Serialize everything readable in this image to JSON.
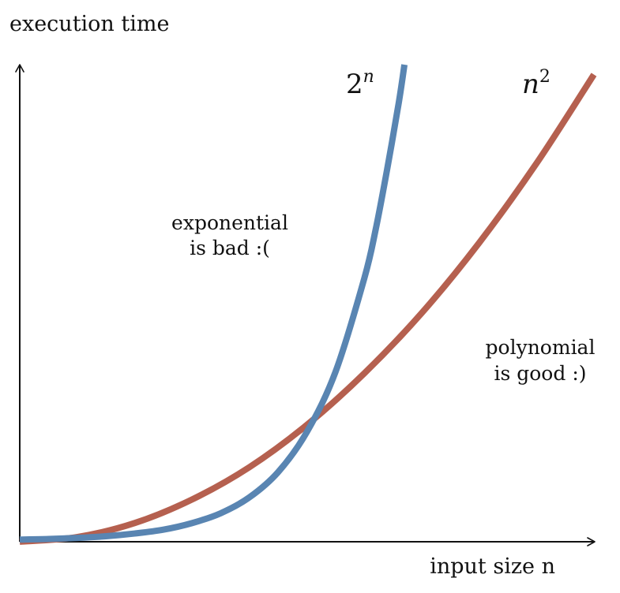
{
  "chart_data": {
    "type": "line",
    "title": "",
    "xlabel": "input size n",
    "ylabel": "execution time",
    "grid": false,
    "legend": "none",
    "axes": {
      "x_ticks": [],
      "y_ticks": []
    },
    "series": [
      {
        "name": "2^n",
        "label_base": "2",
        "label_exp": "n",
        "color": "#5985b2",
        "x": [
          0.0,
          0.05,
          0.1,
          0.15,
          0.2,
          0.25,
          0.3,
          0.35,
          0.4,
          0.45,
          0.5,
          0.55,
          0.6,
          0.62,
          0.64,
          0.66,
          0.67
        ],
        "y": [
          0.004,
          0.005,
          0.007,
          0.01,
          0.015,
          0.022,
          0.034,
          0.052,
          0.081,
          0.127,
          0.2,
          0.31,
          0.48,
          0.57,
          0.68,
          0.8,
          0.87
        ]
      },
      {
        "name": "n^2",
        "label_base": "n",
        "label_exp": "2",
        "color": "#b5604f",
        "x": [
          0.0,
          0.1,
          0.2,
          0.3,
          0.4,
          0.5,
          0.6,
          0.7,
          0.8,
          0.9,
          1.0
        ],
        "y": [
          0.0,
          0.0085,
          0.034,
          0.077,
          0.136,
          0.213,
          0.307,
          0.417,
          0.545,
          0.69,
          0.852
        ]
      }
    ],
    "annotations": [
      {
        "id": "exponential",
        "line1": "exponential",
        "line2": "is bad :("
      },
      {
        "id": "polynomial",
        "line1": "polynomial",
        "line2": "is good :)"
      }
    ],
    "xlim": [
      0,
      1
    ],
    "ylim": [
      0,
      0.87
    ]
  }
}
